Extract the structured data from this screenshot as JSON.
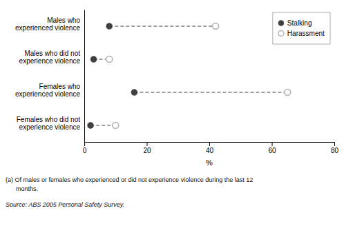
{
  "chart_data": {
    "type": "dumbbell",
    "categories": [
      "Males who\nexperienced violence",
      "Males who did not\nexperience violence",
      "Females who\nexperienced violence",
      "Females who did not\nexperience violence"
    ],
    "series": [
      {
        "name": "Stalking",
        "color": "#404040",
        "marker": "circle",
        "values": [
          8.0,
          3.0,
          16.0,
          2.0
        ]
      },
      {
        "name": "Harassment",
        "color": "#b0b0b0",
        "marker": "ring",
        "values": [
          42.0,
          8.0,
          65.0,
          10.0
        ]
      }
    ],
    "xlabel": "%",
    "xlim": [
      0,
      80
    ],
    "xticks": [
      0,
      20,
      40,
      60,
      80
    ],
    "grid": false,
    "legend": "top-right",
    "annotations": [
      "(a) Of males or females who experienced or did not experience violence during the last 12",
      "      months.",
      "Source: ABS 2005 Personal Safety Survey."
    ]
  }
}
